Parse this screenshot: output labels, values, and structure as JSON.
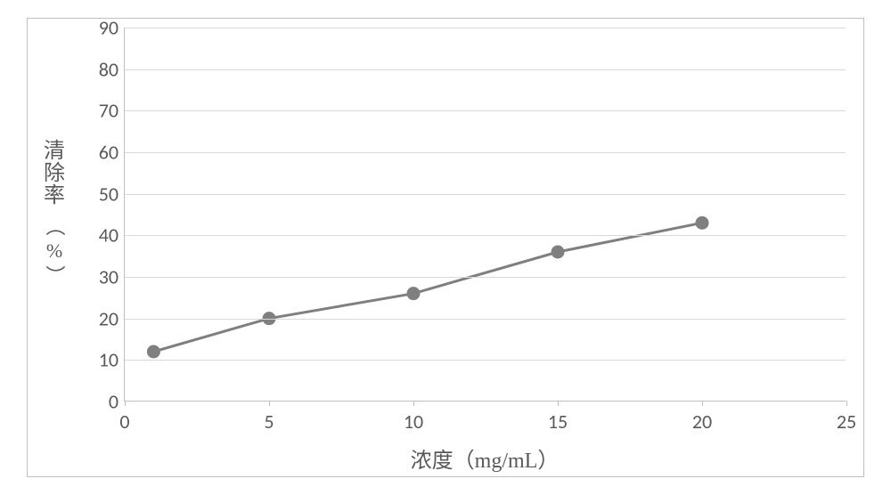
{
  "chart": {
    "type": "line",
    "x_values": [
      1,
      5,
      10,
      15,
      20
    ],
    "y_values": [
      12,
      20,
      26,
      36,
      43
    ],
    "line_color": "#7f7f7f",
    "line_width": 3,
    "marker": {
      "shape": "circle",
      "radius": 7,
      "fill": "#7f7f7f",
      "stroke": "#7f7f7f"
    },
    "xlim": [
      0,
      25
    ],
    "ylim": [
      0,
      90
    ],
    "xtick_step": 5,
    "ytick_step": 10,
    "xticks": [
      0,
      5,
      10,
      15,
      20,
      25
    ],
    "yticks": [
      0,
      10,
      20,
      30,
      40,
      50,
      60,
      70,
      80,
      90
    ],
    "x_label": "浓度（mg/mL）",
    "y_label_main": "清除率",
    "y_label_unit": "（%）",
    "plot_background": "#ffffff",
    "outer_background": "#ffffff",
    "outer_border_color": "#bfbfbf",
    "axis_color": "#bfbfbf",
    "grid_color": "#d9d9d9",
    "tick_label_color": "#595959",
    "tick_label_fontsize": 22,
    "axis_label_color": "#595959",
    "axis_label_fontsize": 24,
    "font_family_labels": "SimSun",
    "font_family_ticks": "Calibri"
  }
}
